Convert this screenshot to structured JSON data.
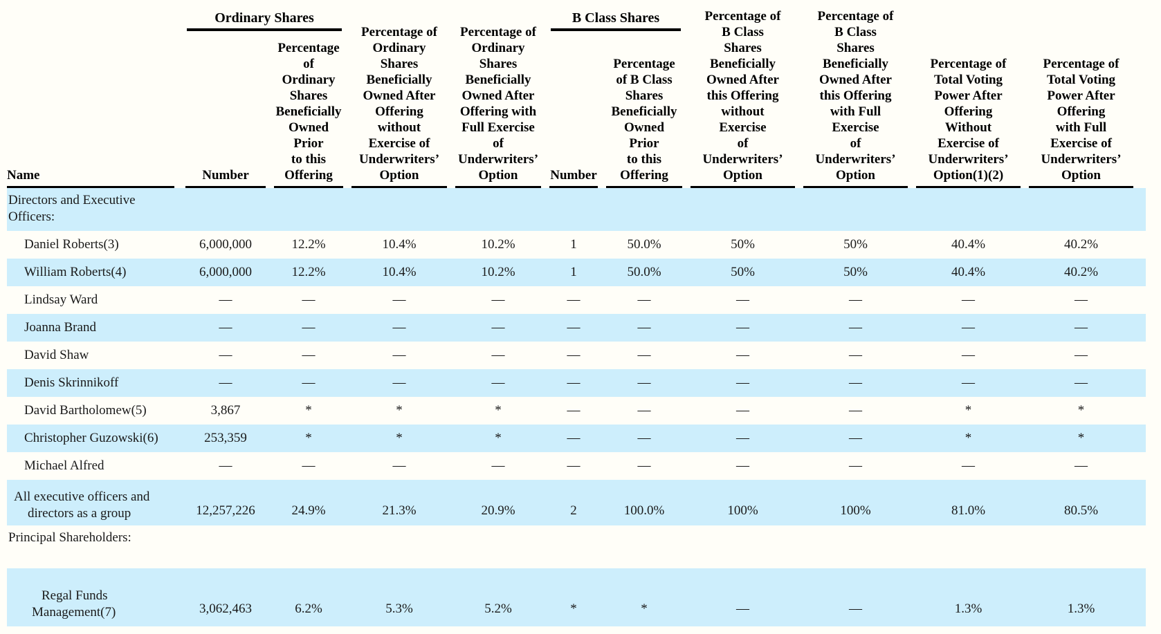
{
  "page": {
    "background": "#fffef8",
    "shade_color": "#cdeefc",
    "rule_color": "#000000"
  },
  "table": {
    "group_headers": [
      {
        "label": "Ordinary Shares"
      },
      {
        "label": "B Class Shares"
      }
    ],
    "columns": [
      {
        "label": "Name"
      },
      {
        "label": "Number"
      },
      {
        "label": "Percentage\nof\nOrdinary\nShares\nBeneficially\nOwned\nPrior\nto this\nOffering"
      },
      {
        "label": "Percentage of\nOrdinary\nShares\nBeneficially\nOwned After\nOffering\nwithout\nExercise of\nUnderwriters’\nOption"
      },
      {
        "label": "Percentage of\nOrdinary\nShares\nBeneficially\nOwned After\nOffering with\nFull Exercise\nof\nUnderwriters’\nOption"
      },
      {
        "label": "Number"
      },
      {
        "label": "Percentage\nof B Class\nShares\nBeneficially\nOwned\nPrior\nto this\nOffering"
      },
      {
        "label": "Percentage of\nB Class\nShares\nBeneficially\nOwned After\nthis Offering\nwithout\nExercise\nof\nUnderwriters’\nOption"
      },
      {
        "label": "Percentage of\nB Class\nShares\nBeneficially\nOwned After\nthis Offering\nwith Full\nExercise\nof\nUnderwriters’\nOption"
      },
      {
        "label": "Percentage of\nTotal Voting\nPower After\nOffering\nWithout\nExercise of\nUnderwriters’\nOption(1)(2)"
      },
      {
        "label": "Percentage of\nTotal Voting\nPower After\nOffering\nwith Full\nExercise of\nUnderwriters’\nOption"
      }
    ],
    "rows": [
      {
        "type": "section",
        "shaded": true,
        "label": "Directors and Executive Officers:",
        "cells": [
          "",
          "",
          "",
          "",
          "",
          "",
          "",
          "",
          "",
          ""
        ]
      },
      {
        "type": "person",
        "shaded": false,
        "label": "Daniel Roberts(3)",
        "cells": [
          "6,000,000",
          "12.2%",
          "10.4%",
          "10.2%",
          "1",
          "50.0%",
          "50%",
          "50%",
          "40.4%",
          "40.2%"
        ]
      },
      {
        "type": "person",
        "shaded": true,
        "label": "William Roberts(4)",
        "cells": [
          "6,000,000",
          "12.2%",
          "10.4%",
          "10.2%",
          "1",
          "50.0%",
          "50%",
          "50%",
          "40.4%",
          "40.2%"
        ]
      },
      {
        "type": "person",
        "shaded": false,
        "label": "Lindsay Ward",
        "cells": [
          "—",
          "—",
          "—",
          "—",
          "—",
          "—",
          "—",
          "—",
          "—",
          "—"
        ]
      },
      {
        "type": "person",
        "shaded": true,
        "label": "Joanna Brand",
        "cells": [
          "—",
          "—",
          "—",
          "—",
          "—",
          "—",
          "—",
          "—",
          "—",
          "—"
        ]
      },
      {
        "type": "person",
        "shaded": false,
        "label": "David Shaw",
        "cells": [
          "—",
          "—",
          "—",
          "—",
          "—",
          "—",
          "—",
          "—",
          "—",
          "—"
        ]
      },
      {
        "type": "person",
        "shaded": true,
        "label": "Denis Skrinnikoff",
        "cells": [
          "—",
          "—",
          "—",
          "—",
          "—",
          "—",
          "—",
          "—",
          "—",
          "—"
        ]
      },
      {
        "type": "person",
        "shaded": false,
        "label": "David Bartholomew(5)",
        "cells": [
          "3,867",
          "*",
          "*",
          "*",
          "—",
          "—",
          "—",
          "—",
          "*",
          "*"
        ]
      },
      {
        "type": "person",
        "shaded": true,
        "label": "Christopher Guzowski(6)",
        "cells": [
          "253,359",
          "*",
          "*",
          "*",
          "—",
          "—",
          "—",
          "—",
          "*",
          "*"
        ]
      },
      {
        "type": "person",
        "shaded": false,
        "label": "Michael Alfred",
        "cells": [
          "—",
          "—",
          "—",
          "—",
          "—",
          "—",
          "—",
          "—",
          "—",
          "—"
        ]
      },
      {
        "type": "total",
        "shaded": true,
        "label": "All executive officers and directors as a group",
        "cells": [
          "12,257,226",
          "24.9%",
          "21.3%",
          "20.9%",
          "2",
          "100.0%",
          "100%",
          "100%",
          "81.0%",
          "80.5%"
        ]
      },
      {
        "type": "section",
        "shaded": false,
        "label": "Principal Shareholders:",
        "cells": [
          "",
          "",
          "",
          "",
          "",
          "",
          "",
          "",
          "",
          ""
        ]
      },
      {
        "type": "holder",
        "shaded": true,
        "label": "Regal Funds Management(7)",
        "cells": [
          "3,062,463",
          "6.2%",
          "5.3%",
          "5.2%",
          "*",
          "*",
          "—",
          "—",
          "1.3%",
          "1.3%"
        ]
      }
    ]
  }
}
